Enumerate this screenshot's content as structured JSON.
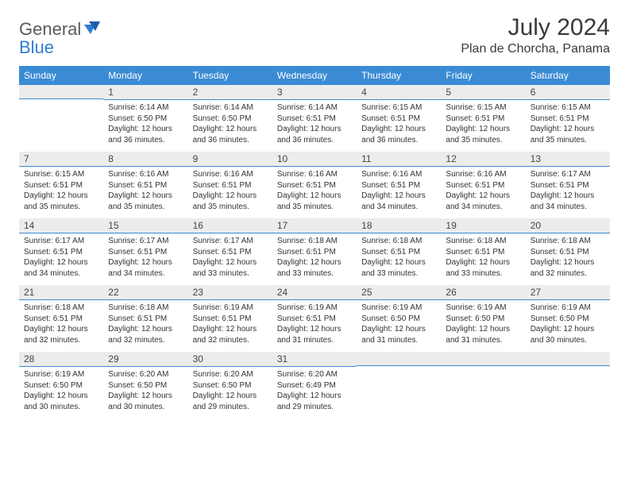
{
  "logo": {
    "general": "General",
    "blue": "Blue"
  },
  "title": "July 2024",
  "location": "Plan de Chorcha, Panama",
  "colors": {
    "header_bg": "#3b8bd4",
    "header_text": "#ffffff",
    "daynum_bg": "#ececec",
    "daynum_border": "#3b8bd4",
    "body_text": "#333333",
    "title_text": "#3a3a3a",
    "logo_gray": "#5a5a5a",
    "logo_blue": "#2f7dd1",
    "page_bg": "#ffffff"
  },
  "day_names": [
    "Sunday",
    "Monday",
    "Tuesday",
    "Wednesday",
    "Thursday",
    "Friday",
    "Saturday"
  ],
  "weeks": [
    [
      {
        "n": "",
        "sr": "",
        "ss": "",
        "dl": ""
      },
      {
        "n": "1",
        "sr": "Sunrise: 6:14 AM",
        "ss": "Sunset: 6:50 PM",
        "dl": "Daylight: 12 hours and 36 minutes."
      },
      {
        "n": "2",
        "sr": "Sunrise: 6:14 AM",
        "ss": "Sunset: 6:50 PM",
        "dl": "Daylight: 12 hours and 36 minutes."
      },
      {
        "n": "3",
        "sr": "Sunrise: 6:14 AM",
        "ss": "Sunset: 6:51 PM",
        "dl": "Daylight: 12 hours and 36 minutes."
      },
      {
        "n": "4",
        "sr": "Sunrise: 6:15 AM",
        "ss": "Sunset: 6:51 PM",
        "dl": "Daylight: 12 hours and 36 minutes."
      },
      {
        "n": "5",
        "sr": "Sunrise: 6:15 AM",
        "ss": "Sunset: 6:51 PM",
        "dl": "Daylight: 12 hours and 35 minutes."
      },
      {
        "n": "6",
        "sr": "Sunrise: 6:15 AM",
        "ss": "Sunset: 6:51 PM",
        "dl": "Daylight: 12 hours and 35 minutes."
      }
    ],
    [
      {
        "n": "7",
        "sr": "Sunrise: 6:15 AM",
        "ss": "Sunset: 6:51 PM",
        "dl": "Daylight: 12 hours and 35 minutes."
      },
      {
        "n": "8",
        "sr": "Sunrise: 6:16 AM",
        "ss": "Sunset: 6:51 PM",
        "dl": "Daylight: 12 hours and 35 minutes."
      },
      {
        "n": "9",
        "sr": "Sunrise: 6:16 AM",
        "ss": "Sunset: 6:51 PM",
        "dl": "Daylight: 12 hours and 35 minutes."
      },
      {
        "n": "10",
        "sr": "Sunrise: 6:16 AM",
        "ss": "Sunset: 6:51 PM",
        "dl": "Daylight: 12 hours and 35 minutes."
      },
      {
        "n": "11",
        "sr": "Sunrise: 6:16 AM",
        "ss": "Sunset: 6:51 PM",
        "dl": "Daylight: 12 hours and 34 minutes."
      },
      {
        "n": "12",
        "sr": "Sunrise: 6:16 AM",
        "ss": "Sunset: 6:51 PM",
        "dl": "Daylight: 12 hours and 34 minutes."
      },
      {
        "n": "13",
        "sr": "Sunrise: 6:17 AM",
        "ss": "Sunset: 6:51 PM",
        "dl": "Daylight: 12 hours and 34 minutes."
      }
    ],
    [
      {
        "n": "14",
        "sr": "Sunrise: 6:17 AM",
        "ss": "Sunset: 6:51 PM",
        "dl": "Daylight: 12 hours and 34 minutes."
      },
      {
        "n": "15",
        "sr": "Sunrise: 6:17 AM",
        "ss": "Sunset: 6:51 PM",
        "dl": "Daylight: 12 hours and 34 minutes."
      },
      {
        "n": "16",
        "sr": "Sunrise: 6:17 AM",
        "ss": "Sunset: 6:51 PM",
        "dl": "Daylight: 12 hours and 33 minutes."
      },
      {
        "n": "17",
        "sr": "Sunrise: 6:18 AM",
        "ss": "Sunset: 6:51 PM",
        "dl": "Daylight: 12 hours and 33 minutes."
      },
      {
        "n": "18",
        "sr": "Sunrise: 6:18 AM",
        "ss": "Sunset: 6:51 PM",
        "dl": "Daylight: 12 hours and 33 minutes."
      },
      {
        "n": "19",
        "sr": "Sunrise: 6:18 AM",
        "ss": "Sunset: 6:51 PM",
        "dl": "Daylight: 12 hours and 33 minutes."
      },
      {
        "n": "20",
        "sr": "Sunrise: 6:18 AM",
        "ss": "Sunset: 6:51 PM",
        "dl": "Daylight: 12 hours and 32 minutes."
      }
    ],
    [
      {
        "n": "21",
        "sr": "Sunrise: 6:18 AM",
        "ss": "Sunset: 6:51 PM",
        "dl": "Daylight: 12 hours and 32 minutes."
      },
      {
        "n": "22",
        "sr": "Sunrise: 6:18 AM",
        "ss": "Sunset: 6:51 PM",
        "dl": "Daylight: 12 hours and 32 minutes."
      },
      {
        "n": "23",
        "sr": "Sunrise: 6:19 AM",
        "ss": "Sunset: 6:51 PM",
        "dl": "Daylight: 12 hours and 32 minutes."
      },
      {
        "n": "24",
        "sr": "Sunrise: 6:19 AM",
        "ss": "Sunset: 6:51 PM",
        "dl": "Daylight: 12 hours and 31 minutes."
      },
      {
        "n": "25",
        "sr": "Sunrise: 6:19 AM",
        "ss": "Sunset: 6:50 PM",
        "dl": "Daylight: 12 hours and 31 minutes."
      },
      {
        "n": "26",
        "sr": "Sunrise: 6:19 AM",
        "ss": "Sunset: 6:50 PM",
        "dl": "Daylight: 12 hours and 31 minutes."
      },
      {
        "n": "27",
        "sr": "Sunrise: 6:19 AM",
        "ss": "Sunset: 6:50 PM",
        "dl": "Daylight: 12 hours and 30 minutes."
      }
    ],
    [
      {
        "n": "28",
        "sr": "Sunrise: 6:19 AM",
        "ss": "Sunset: 6:50 PM",
        "dl": "Daylight: 12 hours and 30 minutes."
      },
      {
        "n": "29",
        "sr": "Sunrise: 6:20 AM",
        "ss": "Sunset: 6:50 PM",
        "dl": "Daylight: 12 hours and 30 minutes."
      },
      {
        "n": "30",
        "sr": "Sunrise: 6:20 AM",
        "ss": "Sunset: 6:50 PM",
        "dl": "Daylight: 12 hours and 29 minutes."
      },
      {
        "n": "31",
        "sr": "Sunrise: 6:20 AM",
        "ss": "Sunset: 6:49 PM",
        "dl": "Daylight: 12 hours and 29 minutes."
      },
      {
        "n": "",
        "sr": "",
        "ss": "",
        "dl": ""
      },
      {
        "n": "",
        "sr": "",
        "ss": "",
        "dl": ""
      },
      {
        "n": "",
        "sr": "",
        "ss": "",
        "dl": ""
      }
    ]
  ]
}
